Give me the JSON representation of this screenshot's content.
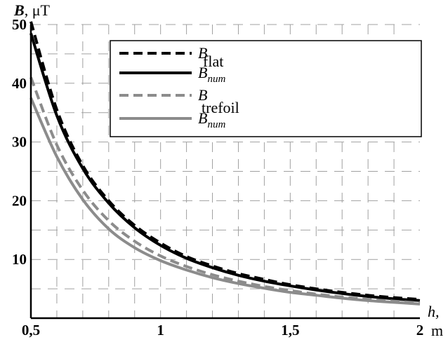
{
  "chart_data": {
    "type": "line",
    "title": "",
    "ylabel_symbol": "B",
    "ylabel_unit": ", μT",
    "xlabel_symbol": "h,",
    "xlabel_unit": "m",
    "xlim": [
      0.5,
      2.0
    ],
    "ylim": [
      0,
      50
    ],
    "x_ticks": [
      {
        "value": 0.5,
        "label": "0,5"
      },
      {
        "value": 1.0,
        "label": "1"
      },
      {
        "value": 1.5,
        "label": "1,5"
      },
      {
        "value": 2.0,
        "label": "2"
      }
    ],
    "y_ticks": [
      {
        "value": 10,
        "label": "10"
      },
      {
        "value": 20,
        "label": "20"
      },
      {
        "value": 30,
        "label": "30"
      },
      {
        "value": 40,
        "label": "40"
      },
      {
        "value": 50,
        "label": "50"
      }
    ],
    "grid": true,
    "legend": {
      "position": "top-right",
      "groups": [
        {
          "label": "flat",
          "entries": [
            {
              "base": "B",
              "sub": ""
            },
            {
              "base": "B",
              "sub": "num"
            }
          ]
        },
        {
          "label": "trefoil",
          "entries": [
            {
              "base": "B",
              "sub": ""
            },
            {
              "base": "B",
              "sub": "num"
            }
          ]
        }
      ]
    },
    "series": [
      {
        "color": "#000000",
        "dash": "dashed",
        "x": [
          0.5,
          0.6,
          0.7,
          0.8,
          0.9,
          1.0,
          1.1,
          1.2,
          1.3,
          1.4,
          1.5,
          1.6,
          1.7,
          1.8,
          1.9,
          2.0
        ],
        "y": [
          50.5,
          35.5,
          26.0,
          20.0,
          15.8,
          12.8,
          10.5,
          8.9,
          7.6,
          6.6,
          5.7,
          5.0,
          4.4,
          3.9,
          3.5,
          3.2
        ]
      },
      {
        "color": "#000000",
        "dash": "solid",
        "x": [
          0.5,
          0.6,
          0.7,
          0.8,
          0.9,
          1.0,
          1.1,
          1.2,
          1.3,
          1.4,
          1.5,
          1.6,
          1.7,
          1.8,
          1.9,
          2.0
        ],
        "y": [
          48.5,
          34.5,
          25.5,
          19.6,
          15.4,
          12.4,
          10.2,
          8.6,
          7.3,
          6.3,
          5.5,
          4.8,
          4.2,
          3.7,
          3.3,
          3.0
        ]
      },
      {
        "color": "#8c8c8c",
        "dash": "dashed",
        "x": [
          0.5,
          0.6,
          0.7,
          0.8,
          0.9,
          1.0,
          1.1,
          1.2,
          1.3,
          1.4,
          1.5,
          1.6,
          1.7,
          1.8,
          1.9,
          2.0
        ],
        "y": [
          41.0,
          29.5,
          21.8,
          16.6,
          13.1,
          10.6,
          8.8,
          7.4,
          6.3,
          5.4,
          4.7,
          4.1,
          3.6,
          3.2,
          2.9,
          2.6
        ]
      },
      {
        "color": "#8c8c8c",
        "dash": "solid",
        "x": [
          0.5,
          0.6,
          0.7,
          0.8,
          0.9,
          1.0,
          1.1,
          1.2,
          1.3,
          1.4,
          1.5,
          1.6,
          1.7,
          1.8,
          1.9,
          2.0
        ],
        "y": [
          37.5,
          27.5,
          20.2,
          15.2,
          12.0,
          9.8,
          8.2,
          6.9,
          5.9,
          5.1,
          4.4,
          3.9,
          3.4,
          3.0,
          2.7,
          2.4
        ]
      }
    ]
  }
}
